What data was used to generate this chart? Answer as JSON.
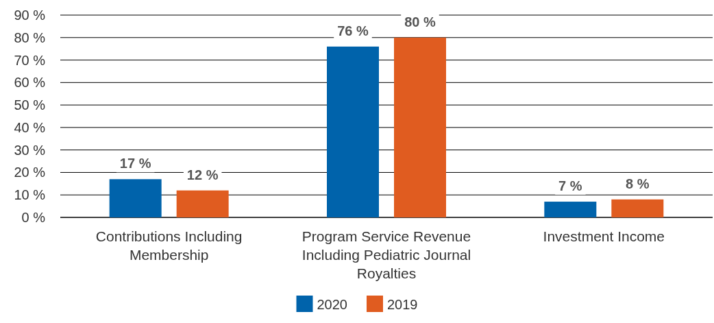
{
  "chart_data": {
    "type": "bar",
    "categories": [
      "Contributions Including Membership",
      "Program Service Revenue Including Pediatric Journal Royalties",
      "Investment Income"
    ],
    "series": [
      {
        "name": "2020",
        "color": "#0063ab",
        "values": [
          17,
          76,
          7
        ],
        "value_labels": [
          "17 %",
          "76 %",
          "7 %"
        ]
      },
      {
        "name": "2019",
        "color": "#e05c20",
        "values": [
          12,
          80,
          8
        ],
        "value_labels": [
          "12 %",
          "80 %",
          "8 %"
        ]
      }
    ],
    "ylim": [
      0,
      90
    ],
    "yticks": [
      {
        "value": 0,
        "label": "0 %"
      },
      {
        "value": 10,
        "label": "10 %"
      },
      {
        "value": 20,
        "label": "20 %"
      },
      {
        "value": 30,
        "label": "30 %"
      },
      {
        "value": 40,
        "label": "40 %"
      },
      {
        "value": 50,
        "label": "50 %"
      },
      {
        "value": 60,
        "label": "60 %"
      },
      {
        "value": 70,
        "label": "70 %"
      },
      {
        "value": 80,
        "label": "80 %"
      },
      {
        "value": 90,
        "label": "90 %"
      }
    ],
    "grid": "y",
    "legend": "bottom"
  }
}
